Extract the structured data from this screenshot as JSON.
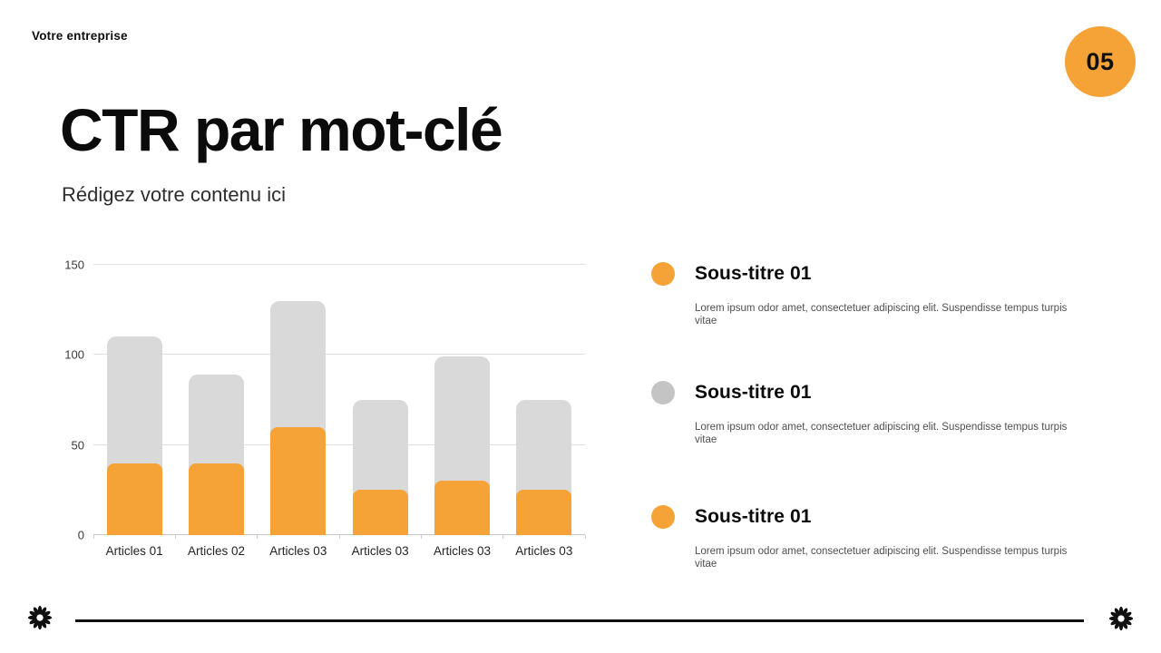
{
  "slide": {
    "background": "#FFFFFF",
    "accent_color": "#F5A236",
    "neutral_color": "#D9D9D9"
  },
  "header": {
    "brand": "Votre entreprise",
    "page_badge": {
      "number": "05",
      "bg_color": "#F5A236",
      "text_color": "#101010"
    }
  },
  "title_block": {
    "title": "CTR par mot-clé",
    "subtitle": "Rédigez votre contenu ici"
  },
  "chart_data": {
    "type": "bar",
    "title": "",
    "xlabel": "",
    "ylabel": "",
    "categories": [
      "Articles 01",
      "Articles 02",
      "Articles 03",
      "Articles 03",
      "Articles 03",
      "Articles 03"
    ],
    "series": [
      {
        "name": "total-background",
        "color": "#D9D9D9",
        "values": [
          110,
          89,
          130,
          75,
          99,
          75
        ]
      },
      {
        "name": "highlight-foreground",
        "color": "#F5A236",
        "values": [
          40,
          40,
          60,
          25,
          30,
          25
        ]
      }
    ],
    "ylim": [
      0,
      150
    ],
    "yticks": [
      0,
      50,
      100,
      150
    ],
    "grid": true,
    "legend_position": "none",
    "bar_style": "overlaid bars with rounded tops"
  },
  "sidebar_items": [
    {
      "bullet_color": "#F5A236",
      "title": "Sous-titre 01",
      "body": "Lorem ipsum odor amet, consectetuer adipiscing elit. Suspendisse tempus turpis vitae"
    },
    {
      "bullet_color": "#C4C4C4",
      "title": "Sous-titre 01",
      "body": "Lorem ipsum odor amet, consectetuer adipiscing elit. Suspendisse tempus turpis vitae"
    },
    {
      "bullet_color": "#F5A236",
      "title": "Sous-titre 01",
      "body": "Lorem ipsum odor amet, consectetuer adipiscing elit. Suspendisse tempus turpis vitae"
    }
  ],
  "footer": {
    "divider_color": "#101010",
    "ornament_color": "#101010",
    "ornament": "flower-icon"
  }
}
